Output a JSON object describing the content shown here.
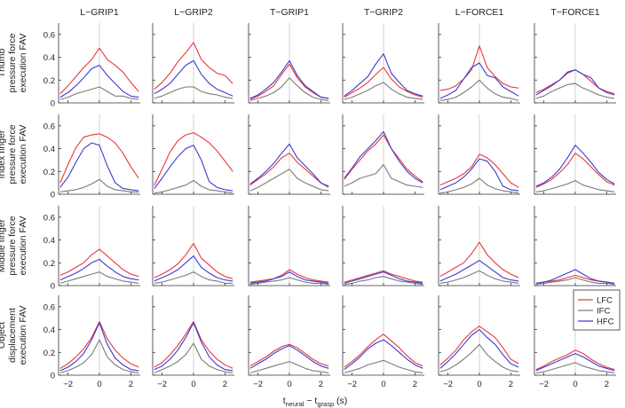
{
  "chart_data": {
    "type": "line",
    "columns": [
      "L−GRIP1",
      "L−GRIP2",
      "T−GRIP1",
      "T−GRIP2",
      "L−FORCE1",
      "T−FORCE1"
    ],
    "rows": [
      {
        "label_lines": [
          "Thumb",
          "pressure force",
          "execution FAV"
        ]
      },
      {
        "label_lines": [
          "Index finger",
          "pressure force",
          "execution FAV"
        ]
      },
      {
        "label_lines": [
          "Middle finger",
          "pressure force",
          "execution FAV"
        ]
      },
      {
        "label_lines": [
          "Object",
          "displacement",
          "execution FAV"
        ]
      }
    ],
    "xlabel": {
      "t1": "t",
      "s1": "neural",
      "mid": " − t",
      "s2": "grasp",
      "end": " (s)"
    },
    "xlim": [
      -2.6,
      2.6
    ],
    "ylim": [
      0,
      0.7
    ],
    "xticks": [
      -2,
      0,
      2
    ],
    "xtick_labels": [
      "−2",
      "0",
      "2"
    ],
    "yticks": [
      0,
      0.2,
      0.4,
      0.6
    ],
    "ytick_labels": [
      "0",
      "0.2",
      "0.4",
      "0.6"
    ],
    "grid": false,
    "vertical_reference_x": 0,
    "legend": {
      "position": "right",
      "entries": [
        "LFC",
        "IFC",
        "HFC"
      ]
    },
    "colors": {
      "LFC": "#e8373a",
      "IFC": "#7a7a7a",
      "HFC": "#3a3ad0",
      "zero_line": "#c8c8c8",
      "axis": "#333333"
    },
    "x_grid": [
      -2.5,
      -2.0,
      -1.5,
      -1.0,
      -0.5,
      0,
      0.5,
      1.0,
      1.5,
      2.0,
      2.5
    ],
    "series_order": [
      "LFC",
      "IFC",
      "HFC"
    ],
    "panels": [
      [
        {
          "LFC": [
            0.08,
            0.15,
            0.23,
            0.31,
            0.38,
            0.48,
            0.38,
            0.33,
            0.27,
            0.18,
            0.1
          ],
          "IFC": [
            0.03,
            0.05,
            0.08,
            0.1,
            0.12,
            0.14,
            0.1,
            0.06,
            0.06,
            0.04,
            0.03
          ],
          "HFC": [
            0.05,
            0.09,
            0.15,
            0.22,
            0.3,
            0.33,
            0.24,
            0.17,
            0.1,
            0.06,
            0.05
          ]
        },
        {
          "LFC": [
            0.12,
            0.18,
            0.26,
            0.36,
            0.44,
            0.53,
            0.38,
            0.31,
            0.26,
            0.24,
            0.17
          ],
          "IFC": [
            0.04,
            0.06,
            0.09,
            0.12,
            0.14,
            0.14,
            0.1,
            0.08,
            0.07,
            0.05,
            0.04
          ],
          "HFC": [
            0.08,
            0.12,
            0.17,
            0.25,
            0.33,
            0.37,
            0.25,
            0.17,
            0.12,
            0.09,
            0.06
          ]
        },
        {
          "LFC": [
            0.03,
            0.06,
            0.1,
            0.15,
            0.25,
            0.34,
            0.22,
            0.14,
            0.09,
            0.05,
            0.04
          ],
          "IFC": [
            0.02,
            0.04,
            0.06,
            0.09,
            0.14,
            0.22,
            0.15,
            0.09,
            0.05,
            0.03,
            0.02
          ],
          "HFC": [
            0.04,
            0.07,
            0.12,
            0.18,
            0.27,
            0.37,
            0.24,
            0.15,
            0.1,
            0.05,
            0.04
          ]
        },
        {
          "LFC": [
            0.05,
            0.09,
            0.13,
            0.18,
            0.25,
            0.31,
            0.21,
            0.14,
            0.1,
            0.07,
            0.05
          ],
          "IFC": [
            0.03,
            0.05,
            0.08,
            0.11,
            0.15,
            0.18,
            0.12,
            0.08,
            0.05,
            0.04,
            0.03
          ],
          "HFC": [
            0.06,
            0.11,
            0.17,
            0.23,
            0.34,
            0.43,
            0.26,
            0.18,
            0.11,
            0.08,
            0.06
          ]
        },
        {
          "LFC": [
            0.11,
            0.12,
            0.15,
            0.21,
            0.29,
            0.5,
            0.31,
            0.23,
            0.17,
            0.14,
            0.13
          ],
          "IFC": [
            0.02,
            0.03,
            0.05,
            0.09,
            0.14,
            0.2,
            0.13,
            0.08,
            0.05,
            0.04,
            0.02
          ],
          "HFC": [
            0.04,
            0.07,
            0.11,
            0.21,
            0.31,
            0.35,
            0.24,
            0.22,
            0.14,
            0.1,
            0.06
          ]
        },
        {
          "LFC": [
            0.09,
            0.12,
            0.16,
            0.2,
            0.26,
            0.29,
            0.25,
            0.19,
            0.13,
            0.1,
            0.08
          ],
          "IFC": [
            0.04,
            0.06,
            0.1,
            0.13,
            0.16,
            0.17,
            0.13,
            0.1,
            0.07,
            0.05,
            0.04
          ],
          "HFC": [
            0.07,
            0.11,
            0.15,
            0.2,
            0.27,
            0.29,
            0.25,
            0.22,
            0.13,
            0.09,
            0.07
          ]
        }
      ],
      [
        {
          "LFC": [
            0.1,
            0.26,
            0.41,
            0.5,
            0.52,
            0.53,
            0.5,
            0.45,
            0.36,
            0.24,
            0.14
          ],
          "IFC": [
            0.02,
            0.03,
            0.04,
            0.06,
            0.09,
            0.13,
            0.07,
            0.04,
            0.03,
            0.02,
            0.02
          ],
          "HFC": [
            0.06,
            0.15,
            0.28,
            0.4,
            0.45,
            0.43,
            0.25,
            0.1,
            0.05,
            0.04,
            0.03
          ]
        },
        {
          "LFC": [
            0.08,
            0.22,
            0.37,
            0.47,
            0.52,
            0.54,
            0.5,
            0.45,
            0.38,
            0.29,
            0.2
          ],
          "IFC": [
            0.01,
            0.02,
            0.04,
            0.06,
            0.08,
            0.12,
            0.07,
            0.04,
            0.03,
            0.02,
            0.01
          ],
          "HFC": [
            0.05,
            0.14,
            0.24,
            0.33,
            0.4,
            0.43,
            0.3,
            0.11,
            0.06,
            0.04,
            0.03
          ]
        },
        {
          "LFC": [
            0.08,
            0.13,
            0.18,
            0.24,
            0.32,
            0.36,
            0.28,
            0.22,
            0.16,
            0.1,
            0.06
          ],
          "IFC": [
            0.03,
            0.06,
            0.1,
            0.14,
            0.18,
            0.22,
            0.14,
            0.1,
            0.07,
            0.04,
            0.03
          ],
          "HFC": [
            0.09,
            0.14,
            0.2,
            0.27,
            0.36,
            0.44,
            0.32,
            0.25,
            0.18,
            0.1,
            0.07
          ]
        },
        {
          "LFC": [
            0.13,
            0.22,
            0.3,
            0.38,
            0.44,
            0.52,
            0.4,
            0.31,
            0.22,
            0.16,
            0.11
          ],
          "IFC": [
            0.07,
            0.1,
            0.14,
            0.16,
            0.18,
            0.26,
            0.14,
            0.11,
            0.08,
            0.07,
            0.06
          ],
          "HFC": [
            0.14,
            0.23,
            0.33,
            0.4,
            0.47,
            0.55,
            0.4,
            0.29,
            0.2,
            0.14,
            0.1
          ]
        },
        {
          "LFC": [
            0.08,
            0.11,
            0.14,
            0.18,
            0.24,
            0.35,
            0.32,
            0.26,
            0.18,
            0.1,
            0.06
          ],
          "IFC": [
            0.01,
            0.02,
            0.04,
            0.06,
            0.09,
            0.14,
            0.08,
            0.05,
            0.03,
            0.02,
            0.01
          ],
          "HFC": [
            0.04,
            0.07,
            0.1,
            0.15,
            0.22,
            0.31,
            0.29,
            0.2,
            0.07,
            0.04,
            0.03
          ]
        },
        {
          "LFC": [
            0.06,
            0.09,
            0.13,
            0.19,
            0.26,
            0.36,
            0.31,
            0.24,
            0.17,
            0.11,
            0.08
          ],
          "IFC": [
            0.02,
            0.03,
            0.05,
            0.07,
            0.09,
            0.12,
            0.08,
            0.06,
            0.04,
            0.03,
            0.02
          ],
          "HFC": [
            0.07,
            0.1,
            0.15,
            0.22,
            0.32,
            0.43,
            0.36,
            0.28,
            0.19,
            0.13,
            0.09
          ]
        }
      ],
      [
        {
          "LFC": [
            0.09,
            0.12,
            0.16,
            0.2,
            0.27,
            0.32,
            0.26,
            0.2,
            0.14,
            0.1,
            0.08
          ],
          "IFC": [
            0.02,
            0.04,
            0.06,
            0.08,
            0.1,
            0.12,
            0.08,
            0.06,
            0.04,
            0.03,
            0.02
          ],
          "HFC": [
            0.05,
            0.08,
            0.11,
            0.15,
            0.2,
            0.23,
            0.17,
            0.12,
            0.08,
            0.06,
            0.05
          ]
        },
        {
          "LFC": [
            0.07,
            0.1,
            0.14,
            0.19,
            0.27,
            0.37,
            0.24,
            0.18,
            0.12,
            0.08,
            0.06
          ],
          "IFC": [
            0.02,
            0.03,
            0.05,
            0.07,
            0.09,
            0.12,
            0.08,
            0.05,
            0.04,
            0.02,
            0.02
          ],
          "HFC": [
            0.04,
            0.07,
            0.1,
            0.14,
            0.2,
            0.26,
            0.16,
            0.11,
            0.07,
            0.05,
            0.04
          ]
        },
        {
          "LFC": [
            0.03,
            0.04,
            0.05,
            0.06,
            0.09,
            0.14,
            0.1,
            0.07,
            0.05,
            0.04,
            0.03
          ],
          "IFC": [
            0.01,
            0.02,
            0.03,
            0.04,
            0.05,
            0.07,
            0.05,
            0.03,
            0.02,
            0.02,
            0.01
          ],
          "HFC": [
            0.02,
            0.03,
            0.04,
            0.06,
            0.08,
            0.12,
            0.08,
            0.05,
            0.04,
            0.03,
            0.02
          ]
        },
        {
          "LFC": [
            0.03,
            0.05,
            0.07,
            0.09,
            0.11,
            0.13,
            0.1,
            0.08,
            0.06,
            0.04,
            0.03
          ],
          "IFC": [
            0.01,
            0.02,
            0.04,
            0.05,
            0.07,
            0.08,
            0.06,
            0.04,
            0.03,
            0.02,
            0.01
          ],
          "HFC": [
            0.02,
            0.04,
            0.06,
            0.08,
            0.1,
            0.12,
            0.09,
            0.06,
            0.04,
            0.03,
            0.02
          ]
        },
        {
          "LFC": [
            0.08,
            0.12,
            0.16,
            0.2,
            0.28,
            0.38,
            0.27,
            0.2,
            0.14,
            0.1,
            0.07
          ],
          "IFC": [
            0.02,
            0.03,
            0.05,
            0.07,
            0.1,
            0.13,
            0.09,
            0.06,
            0.04,
            0.03,
            0.02
          ],
          "HFC": [
            0.04,
            0.07,
            0.1,
            0.14,
            0.18,
            0.22,
            0.17,
            0.12,
            0.07,
            0.05,
            0.04
          ]
        },
        {
          "LFC": [
            0.02,
            0.03,
            0.04,
            0.05,
            0.07,
            0.09,
            0.07,
            0.05,
            0.04,
            0.03,
            0.02
          ],
          "IFC": [
            0.01,
            0.02,
            0.03,
            0.04,
            0.05,
            0.07,
            0.05,
            0.03,
            0.02,
            0.02,
            0.01
          ],
          "HFC": [
            0.02,
            0.03,
            0.05,
            0.08,
            0.11,
            0.14,
            0.1,
            0.06,
            0.04,
            0.03,
            0.02
          ]
        }
      ],
      [
        {
          "LFC": [
            0.06,
            0.1,
            0.16,
            0.23,
            0.33,
            0.47,
            0.32,
            0.22,
            0.15,
            0.1,
            0.07
          ],
          "IFC": [
            0.02,
            0.04,
            0.07,
            0.11,
            0.18,
            0.31,
            0.16,
            0.09,
            0.05,
            0.03,
            0.02
          ],
          "HFC": [
            0.04,
            0.07,
            0.12,
            0.19,
            0.31,
            0.46,
            0.27,
            0.15,
            0.09,
            0.05,
            0.04
          ]
        },
        {
          "LFC": [
            0.07,
            0.11,
            0.18,
            0.26,
            0.36,
            0.47,
            0.31,
            0.21,
            0.14,
            0.09,
            0.06
          ],
          "IFC": [
            0.02,
            0.05,
            0.08,
            0.12,
            0.18,
            0.28,
            0.14,
            0.08,
            0.05,
            0.03,
            0.02
          ],
          "HFC": [
            0.05,
            0.08,
            0.14,
            0.22,
            0.33,
            0.46,
            0.29,
            0.16,
            0.09,
            0.05,
            0.04
          ]
        },
        {
          "LFC": [
            0.08,
            0.12,
            0.16,
            0.21,
            0.25,
            0.27,
            0.24,
            0.19,
            0.14,
            0.1,
            0.08
          ],
          "IFC": [
            0.02,
            0.04,
            0.06,
            0.08,
            0.1,
            0.12,
            0.09,
            0.06,
            0.04,
            0.03,
            0.02
          ],
          "HFC": [
            0.06,
            0.1,
            0.14,
            0.19,
            0.23,
            0.26,
            0.22,
            0.17,
            0.12,
            0.08,
            0.06
          ]
        },
        {
          "LFC": [
            0.07,
            0.12,
            0.18,
            0.25,
            0.31,
            0.36,
            0.3,
            0.24,
            0.17,
            0.11,
            0.08
          ],
          "IFC": [
            0.02,
            0.04,
            0.06,
            0.09,
            0.11,
            0.13,
            0.1,
            0.07,
            0.05,
            0.03,
            0.02
          ],
          "HFC": [
            0.05,
            0.1,
            0.16,
            0.23,
            0.28,
            0.31,
            0.26,
            0.2,
            0.14,
            0.09,
            0.06
          ]
        },
        {
          "LFC": [
            0.09,
            0.15,
            0.22,
            0.31,
            0.38,
            0.43,
            0.38,
            0.33,
            0.24,
            0.14,
            0.1
          ],
          "IFC": [
            0.03,
            0.05,
            0.09,
            0.14,
            0.2,
            0.27,
            0.18,
            0.12,
            0.07,
            0.04,
            0.03
          ],
          "HFC": [
            0.06,
            0.12,
            0.19,
            0.27,
            0.35,
            0.4,
            0.33,
            0.27,
            0.18,
            0.1,
            0.07
          ]
        },
        {
          "LFC": [
            0.05,
            0.08,
            0.12,
            0.15,
            0.18,
            0.22,
            0.19,
            0.14,
            0.1,
            0.07,
            0.05
          ],
          "IFC": [
            0.02,
            0.03,
            0.05,
            0.07,
            0.09,
            0.11,
            0.08,
            0.06,
            0.04,
            0.03,
            0.02
          ],
          "HFC": [
            0.04,
            0.07,
            0.1,
            0.13,
            0.16,
            0.19,
            0.16,
            0.12,
            0.08,
            0.06,
            0.04
          ]
        }
      ]
    ]
  }
}
